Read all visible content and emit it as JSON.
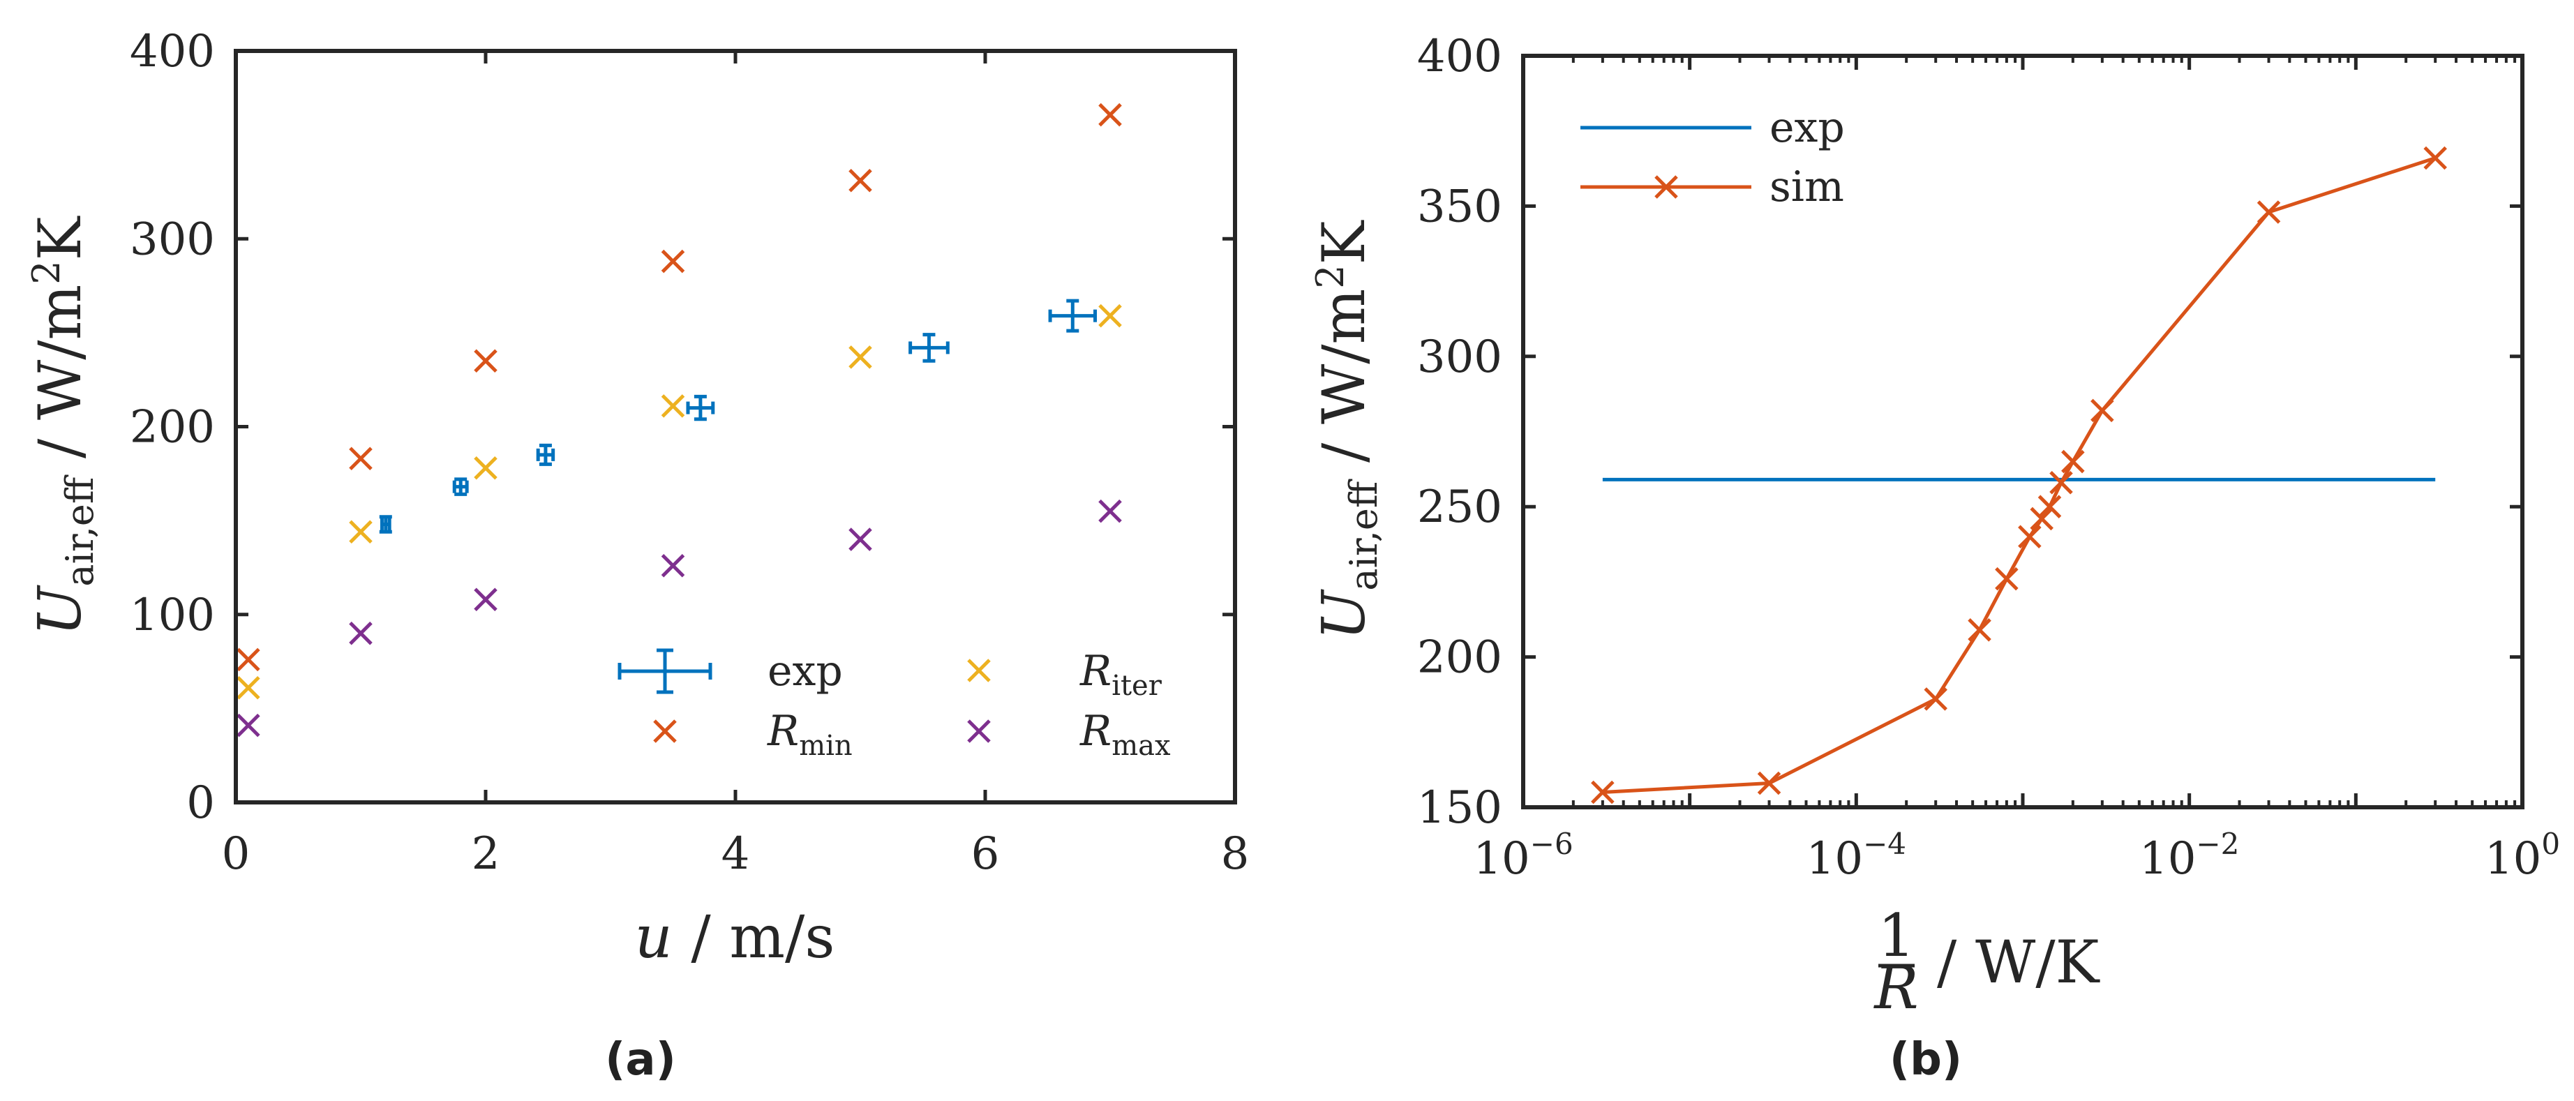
{
  "chart_data": [
    {
      "type": "scatter",
      "panel_label": "(a)",
      "xlabel": "u / m/s",
      "ylabel": "U_air,eff / W/m^2K",
      "xlim": [
        0,
        8
      ],
      "ylim": [
        0,
        400
      ],
      "xticks": [
        0,
        2,
        4,
        6,
        8
      ],
      "yticks": [
        0,
        100,
        200,
        300,
        400
      ],
      "grid": false,
      "legend_position": "bottom-right",
      "series": [
        {
          "name": "exp",
          "marker": "errorbar",
          "color": "#0072BD",
          "x": [
            1.2,
            1.8,
            2.48,
            3.72,
            5.55,
            6.7
          ],
          "y": [
            148,
            168,
            185,
            210,
            242,
            259
          ],
          "xerr": [
            0.03,
            0.05,
            0.06,
            0.1,
            0.15,
            0.18
          ],
          "yerr": [
            4,
            4,
            5,
            6,
            7,
            8
          ]
        },
        {
          "name": "R_iter",
          "marker": "x",
          "color": "#EDB120",
          "x": [
            0.1,
            1,
            2,
            3.5,
            5,
            7
          ],
          "y": [
            61,
            144,
            178,
            211,
            237,
            259
          ]
        },
        {
          "name": "R_min",
          "marker": "x",
          "color": "#D95319",
          "x": [
            0.1,
            1,
            2,
            3.5,
            5,
            7
          ],
          "y": [
            76,
            183,
            235,
            288,
            331,
            366
          ]
        },
        {
          "name": "R_max",
          "marker": "x",
          "color": "#7E2F8E",
          "x": [
            0.1,
            1,
            2,
            3.5,
            5,
            7
          ],
          "y": [
            41,
            90,
            108,
            126,
            140,
            155
          ]
        }
      ]
    },
    {
      "type": "line",
      "panel_label": "(b)",
      "xlabel": "1/R / W/K",
      "ylabel": "U_air,eff / W/m^2K",
      "x_scale": "log",
      "xlim": [
        1e-06,
        1
      ],
      "ylim": [
        150,
        400
      ],
      "xticks": [
        1e-06,
        0.0001,
        0.01,
        1
      ],
      "xtick_labels": [
        "10^-6",
        "10^-4",
        "10^-2",
        "10^0"
      ],
      "yticks": [
        150,
        200,
        250,
        300,
        350,
        400
      ],
      "grid": false,
      "legend_position": "top-left",
      "series": [
        {
          "name": "exp",
          "color": "#0072BD",
          "marker": "none",
          "x": [
            3e-06,
            0.3
          ],
          "y": [
            259,
            259
          ]
        },
        {
          "name": "sim",
          "color": "#D95319",
          "marker": "x",
          "x": [
            3e-06,
            3e-05,
            0.0003,
            0.00055,
            0.0008,
            0.0011,
            0.0013,
            0.00145,
            0.0017,
            0.002,
            0.003,
            0.03,
            0.3
          ],
          "y": [
            155,
            158,
            186,
            209,
            226,
            240,
            246,
            250,
            258,
            265,
            282,
            348,
            366
          ]
        }
      ]
    }
  ]
}
